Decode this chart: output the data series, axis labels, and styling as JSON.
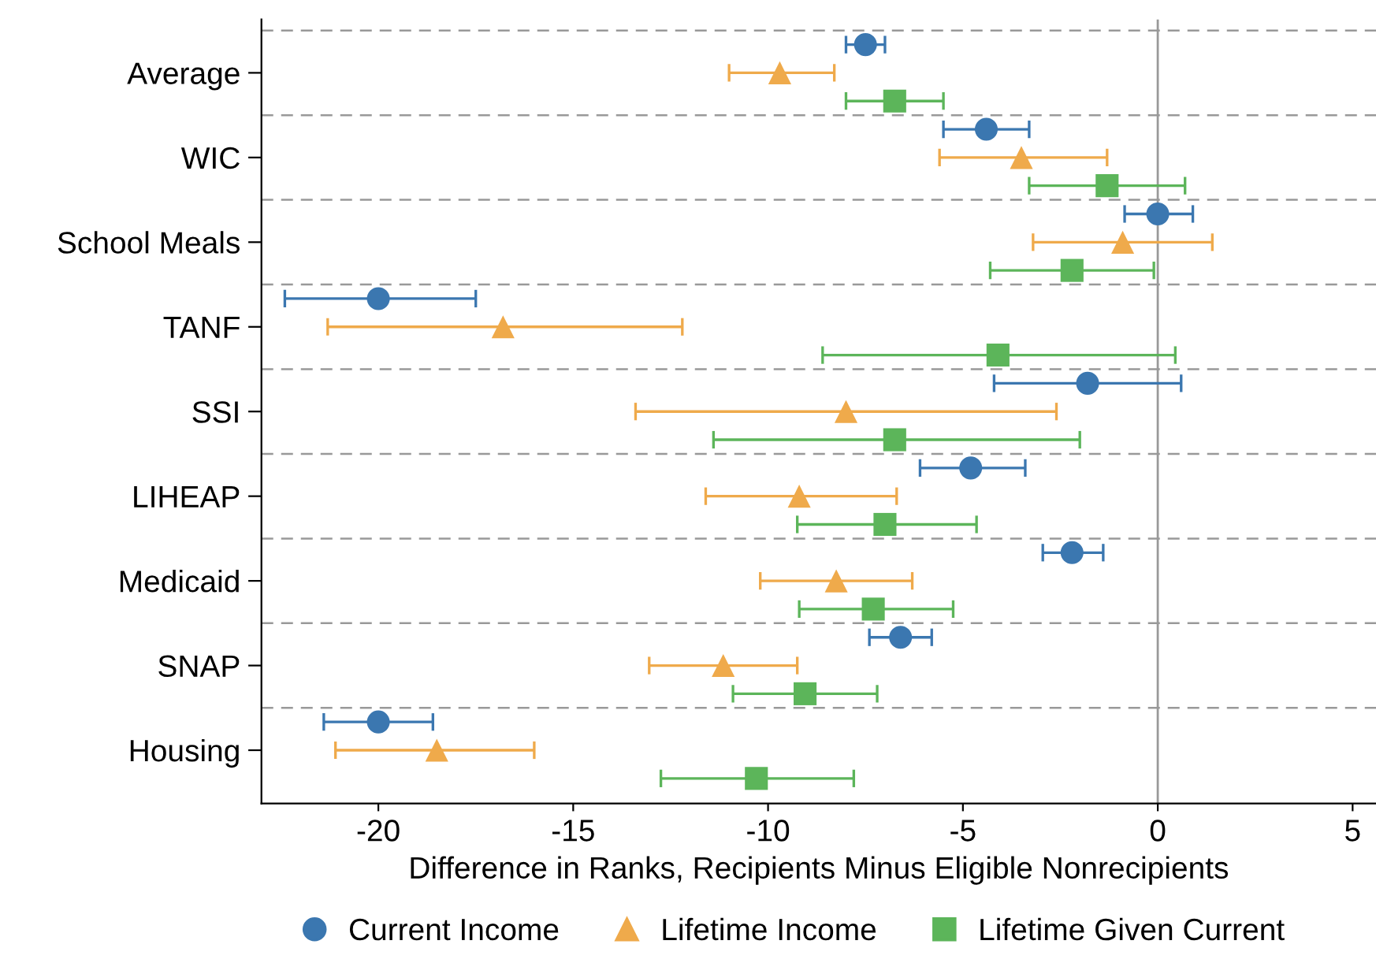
{
  "chart_data": {
    "type": "scatter",
    "orientation": "horizontal",
    "categories": [
      "Average",
      "WIC",
      "School Meals",
      "TANF",
      "SSI",
      "LIHEAP",
      "Medicaid",
      "SNAP",
      "Housing"
    ],
    "xlabel": "Difference in Ranks, Recipients Minus Eligible Nonrecipients",
    "xlim": [
      -23,
      5.6
    ],
    "xticks": [
      -20,
      -15,
      -10,
      -5,
      0,
      5
    ],
    "grid": "y",
    "legend": "bottom",
    "ref_lines": [
      {
        "axis": "x",
        "value": 0,
        "color": "#999999",
        "line_style": "solid"
      }
    ],
    "series": [
      {
        "name": "Current Income",
        "color": "#3b77b0",
        "marker": "circle",
        "values": [
          -7.5,
          -4.4,
          0,
          -20,
          -1.8,
          -4.8,
          -2.2,
          -6.6,
          -20
        ],
        "errors": [
          [
            -8.0,
            -7.0
          ],
          [
            -5.5,
            -3.3
          ],
          [
            -0.85,
            0.9
          ],
          [
            -22.4,
            -17.5
          ],
          [
            -4.2,
            0.6
          ],
          [
            -6.1,
            -3.4
          ],
          [
            -2.95,
            -1.4
          ],
          [
            -7.4,
            -5.8
          ],
          [
            -21.4,
            -18.6
          ]
        ]
      },
      {
        "name": "Lifetime Income",
        "color": "#efaa4b",
        "marker": "triangle",
        "values": [
          -9.7,
          -3.5,
          -0.9,
          -16.8,
          -8.0,
          -9.2,
          -8.25,
          -11.15,
          -18.5
        ],
        "errors": [
          [
            -11.0,
            -8.3
          ],
          [
            -5.6,
            -1.3
          ],
          [
            -3.2,
            1.4
          ],
          [
            -21.3,
            -12.2
          ],
          [
            -13.4,
            -2.6
          ],
          [
            -11.6,
            -6.7
          ],
          [
            -10.2,
            -6.3
          ],
          [
            -13.05,
            -9.25
          ],
          [
            -21.1,
            -16.0
          ]
        ]
      },
      {
        "name": "Lifetime Given Current",
        "color": "#5cb55a",
        "marker": "square",
        "values": [
          -6.75,
          -1.3,
          -2.2,
          -4.1,
          -6.75,
          -7.0,
          -7.3,
          -9.05,
          -10.3
        ],
        "errors": [
          [
            -8.0,
            -5.5
          ],
          [
            -3.3,
            0.7
          ],
          [
            -4.3,
            -0.1
          ],
          [
            -8.6,
            0.45
          ],
          [
            -11.4,
            -2.0
          ],
          [
            -9.25,
            -4.65
          ],
          [
            -9.2,
            -5.25
          ],
          [
            -10.9,
            -7.2
          ],
          [
            -12.75,
            -7.8
          ]
        ]
      }
    ]
  }
}
